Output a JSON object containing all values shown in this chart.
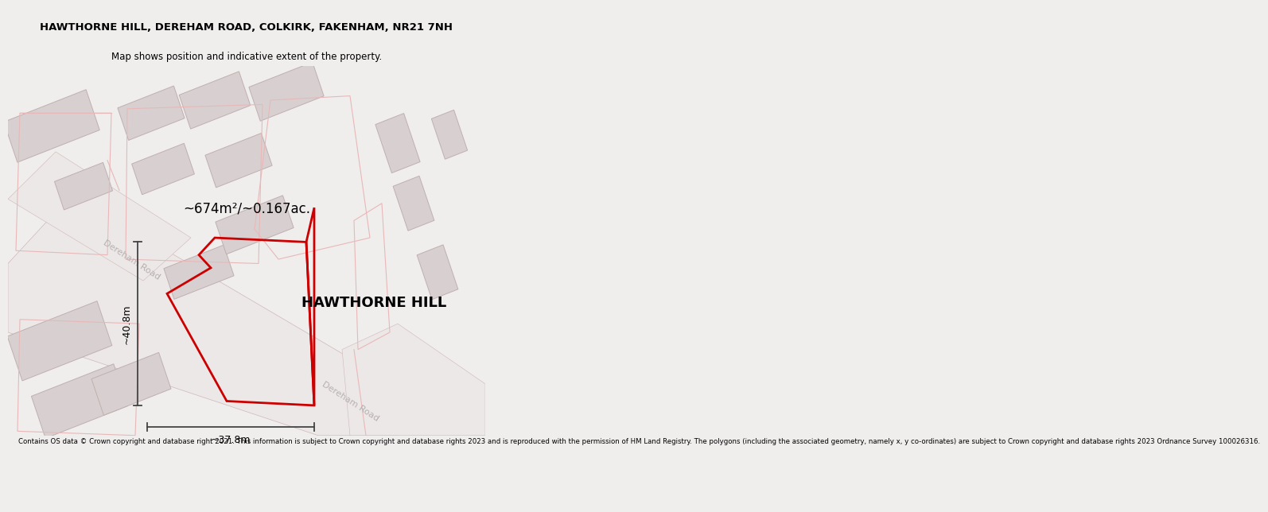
{
  "title": "HAWTHORNE HILL, DEREHAM ROAD, COLKIRK, FAKENHAM, NR21 7NH",
  "subtitle": "Map shows position and indicative extent of the property.",
  "footer": "Contains OS data © Crown copyright and database right 2021. This information is subject to Crown copyright and database rights 2023 and is reproduced with the permission of HM Land Registry. The polygons (including the associated geometry, namely x, y co-ordinates) are subject to Crown copyright and database rights 2023 Ordnance Survey 100026316.",
  "area_label": "~674m²/~0.167ac.",
  "property_name": "HAWTHORNE HILL",
  "dim_width": "~37.8m",
  "dim_height": "~40.8m",
  "road_label_upper": "Dereham Road",
  "road_label_lower": "Dereham Road",
  "red_color": "#cc0000",
  "page_bg": "#f0eded",
  "map_bg": "#ffffff",
  "building_fill": "#d8d0d0",
  "building_edge": "#c0b0b0",
  "road_fill": "#ede8e8",
  "road_edge": "#d0b8b8",
  "outline_color": "#e8b8b8",
  "road_label_color": "#b8b0b0",
  "dim_color": "#444444",
  "title_fontsize": 9.5,
  "subtitle_fontsize": 8.5,
  "footer_fontsize": 6.2,
  "area_fontsize": 12,
  "name_fontsize": 13,
  "dim_fontsize": 9,
  "road_fontsize": 8
}
